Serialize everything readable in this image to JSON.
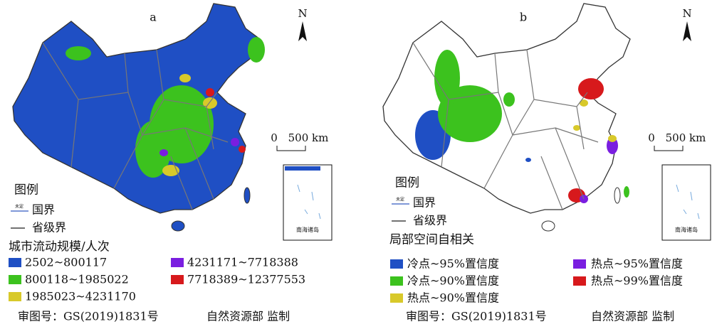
{
  "panels": [
    {
      "label": "a",
      "north": "N",
      "scale": {
        "zero": "0",
        "distance": "500 km"
      },
      "legend": {
        "title": "图例",
        "border_note": "未定",
        "national_border": "国界",
        "provincial_border": "省级界",
        "classification_title": "城市流动规模/人次",
        "items": [
          {
            "label": "2502~800117",
            "color": "#1f4fc4"
          },
          {
            "label": "800118~1985022",
            "color": "#3cc21e"
          },
          {
            "label": "1985023~4231170",
            "color": "#d8c92a"
          },
          {
            "label": "4231171~7718388",
            "color": "#7a1ee0"
          },
          {
            "label": "7718389~12377553",
            "color": "#d7191c"
          }
        ]
      },
      "approval": "审图号：GS(2019)1831号",
      "supervisor": "自然资源部 监制",
      "inset_label": "南海诸岛"
    },
    {
      "label": "b",
      "north": "N",
      "scale": {
        "zero": "0",
        "distance": "500 km"
      },
      "legend": {
        "title": "图例",
        "border_note": "未定",
        "national_border": "国界",
        "provincial_border": "省级界",
        "classification_title": "局部空间自相关",
        "items": [
          {
            "label": "冷点~95%置信度",
            "color": "#1f4fc4"
          },
          {
            "label": "冷点~90%置信度",
            "color": "#3cc21e"
          },
          {
            "label": "热点~90%置信度",
            "color": "#d8c92a"
          },
          {
            "label": "热点~95%置信度",
            "color": "#7a1ee0"
          },
          {
            "label": "热点~99%置信度",
            "color": "#d7191c"
          }
        ]
      },
      "approval": "审图号：GS(2019)1831号",
      "supervisor": "自然资源部 监制",
      "inset_label": "南海诸岛"
    }
  ]
}
